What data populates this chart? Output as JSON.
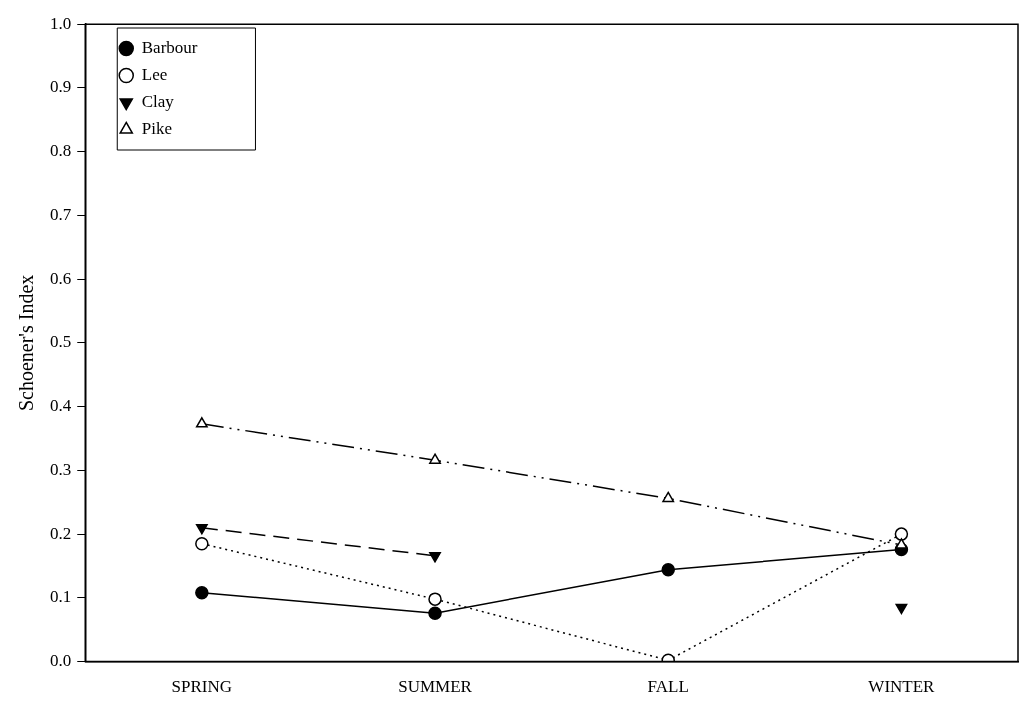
{
  "chart_data": {
    "type": "line",
    "ylabel": "Schoener's Index",
    "categories": [
      "SPRING",
      "SUMMER",
      "FALL",
      "WINTER"
    ],
    "ylim": [
      0,
      1
    ],
    "yticks": [
      {
        "value": 0,
        "label": "0.0"
      },
      {
        "value": 0.1,
        "label": "0.1"
      },
      {
        "value": 0.2,
        "label": "0.2"
      },
      {
        "value": 0.3,
        "label": "0.3"
      },
      {
        "value": 0.4,
        "label": "0.4"
      },
      {
        "value": 0.5,
        "label": "0.5"
      },
      {
        "value": 0.6,
        "label": "0.6"
      },
      {
        "value": 0.7,
        "label": "0.7"
      },
      {
        "value": 0.8,
        "label": "0.8"
      },
      {
        "value": 0.9,
        "label": "0.9"
      },
      {
        "value": 1,
        "label": "1.0"
      }
    ],
    "grid": false,
    "legend": "top left",
    "series": [
      {
        "name": "Barbour",
        "color": "#000000",
        "marker": "circle",
        "line_style": "solid",
        "values": [
          0.108,
          0.076,
          0.144,
          0.176
        ]
      },
      {
        "name": "Lee",
        "color": "#000000",
        "marker": "circle",
        "line_style": "dotted",
        "values": [
          0.185,
          0.098,
          0.002,
          0.2
        ]
      },
      {
        "name": "Clay",
        "color": "#000000",
        "marker": "triangle-down",
        "line_style": "dashed",
        "values": [
          0.21,
          0.166,
          null,
          0.085
        ]
      },
      {
        "name": "Pike",
        "color": "#000000",
        "marker": "triangle",
        "line_style": "dashdot",
        "values": [
          0.373,
          0.316,
          0.256,
          0.183
        ]
      }
    ]
  }
}
